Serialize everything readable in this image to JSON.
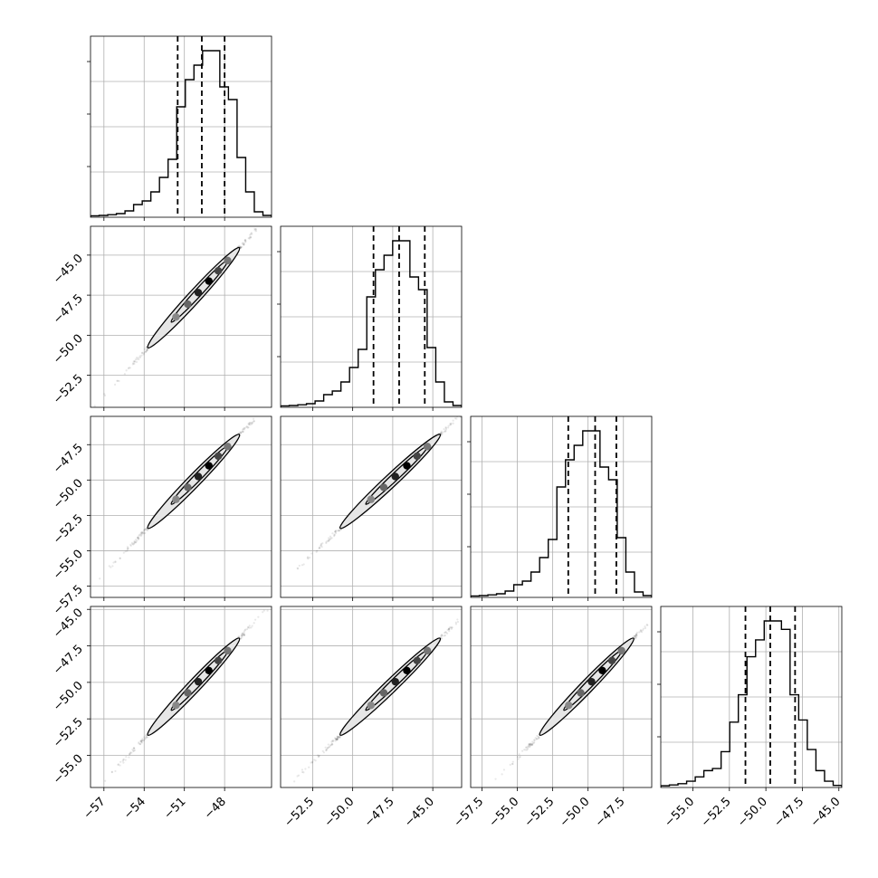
{
  "chart_data": {
    "type": "corner",
    "parameters": [
      {
        "range": [
          -58.0,
          -44.5
        ],
        "ticks": [
          -57,
          -54,
          -51,
          -48
        ],
        "tick_labels": [
          "−57",
          "−54",
          "−51",
          "−48"
        ],
        "quantiles": [
          -51.5,
          -49.7,
          -48.0
        ],
        "histogram": [
          0.008,
          0.01,
          0.014,
          0.02,
          0.035,
          0.07,
          0.09,
          0.14,
          0.22,
          0.32,
          0.61,
          0.76,
          0.84,
          0.92,
          0.92,
          0.72,
          0.65,
          0.33,
          0.14,
          0.03,
          0.01
        ]
      },
      {
        "range": [
          -54.5,
          -43.2
        ],
        "ticks": [
          -52.5,
          -50.0,
          -47.5,
          -45.0
        ],
        "tick_labels": [
          "−52.5",
          "−50.0",
          "−47.5",
          "−45.0"
        ],
        "quantiles": [
          -48.7,
          -47.1,
          -45.5
        ],
        "histogram": [
          0.008,
          0.01,
          0.014,
          0.02,
          0.035,
          0.07,
          0.09,
          0.14,
          0.22,
          0.32,
          0.61,
          0.76,
          0.84,
          0.92,
          0.92,
          0.72,
          0.65,
          0.33,
          0.14,
          0.03,
          0.01
        ]
      },
      {
        "range": [
          -58.3,
          -45.5
        ],
        "ticks": [
          -57.5,
          -55.0,
          -52.5,
          -50.0,
          -47.5
        ],
        "tick_labels": [
          "−57.5",
          "−55.0",
          "−52.5",
          "−50.0",
          "−47.5"
        ],
        "quantiles": [
          -51.4,
          -49.5,
          -48.0
        ],
        "histogram": [
          0.008,
          0.01,
          0.014,
          0.02,
          0.035,
          0.07,
          0.09,
          0.14,
          0.22,
          0.32,
          0.61,
          0.76,
          0.84,
          0.92,
          0.92,
          0.72,
          0.65,
          0.33,
          0.14,
          0.03,
          0.01
        ]
      },
      {
        "range": [
          -57.2,
          -44.8
        ],
        "ticks": [
          -55.0,
          -52.5,
          -50.0,
          -47.5,
          -45.0
        ],
        "tick_labels": [
          "−55.0",
          "−52.5",
          "−50.0",
          "−47.5",
          "−45.0"
        ],
        "quantiles": [
          -51.4,
          -49.7,
          -48.0
        ],
        "histogram": [
          0.008,
          0.012,
          0.018,
          0.03,
          0.05,
          0.08,
          0.09,
          0.17,
          0.31,
          0.44,
          0.62,
          0.7,
          0.79,
          0.79,
          0.75,
          0.44,
          0.32,
          0.18,
          0.08,
          0.03,
          0.01
        ]
      }
    ],
    "grid": true,
    "plot_datapoints": true,
    "contours": true
  }
}
